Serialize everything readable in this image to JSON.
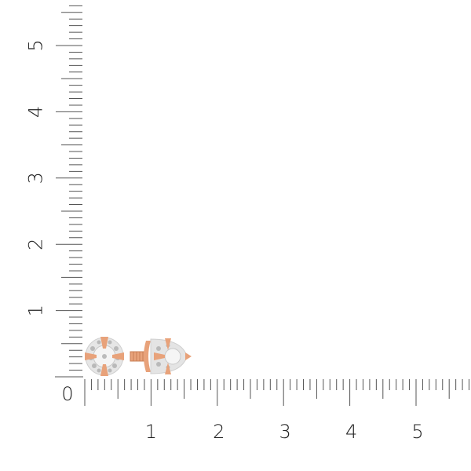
{
  "ruler": {
    "x_labels": [
      "1",
      "2",
      "3",
      "4",
      "5"
    ],
    "y_labels": [
      "1",
      "2",
      "3",
      "4",
      "5"
    ],
    "origin_label": "0",
    "minor_divisions": 10,
    "tick_color": "#555555"
  },
  "product": {
    "name_icon": "stud-earrings-image",
    "metal_color": "#e8a27a",
    "stone_color": "#d9d9d9"
  }
}
